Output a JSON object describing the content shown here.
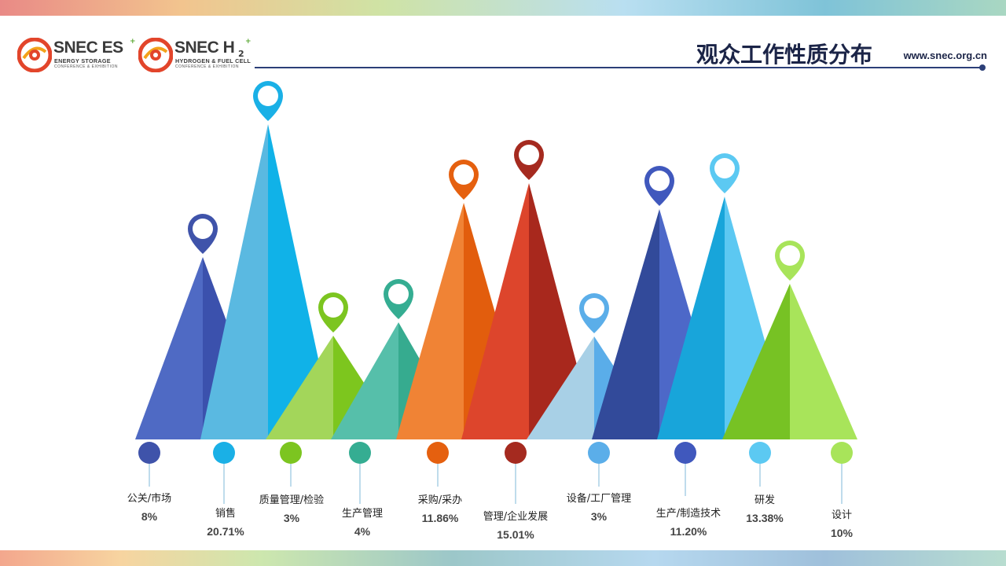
{
  "header": {
    "title": "观众工作性质分布",
    "website": "www.snec.org.cn"
  },
  "logos": {
    "es": {
      "name": "SNEC ES",
      "superscript": "+",
      "line1": "ENERGY STORAGE",
      "line2": "CONFERENCE & EXHIBITION"
    },
    "h2": {
      "name": "SNEC H",
      "subscript": "2",
      "superscript": "+",
      "line1": "HYDROGEN & FUEL CELL",
      "line2": "CONFERENCE & EXHIBITION"
    }
  },
  "chart_data": {
    "type": "bar",
    "categories": [
      "公关/市场",
      "销售",
      "质量管理/检验",
      "生产管理",
      "采购/采办",
      "管理/企业发展",
      "设备/工厂管理",
      "生产/制造技术",
      "研发",
      "设计"
    ],
    "value_labels": [
      "8%",
      "20.71%",
      "3%",
      "4%",
      "11.86%",
      "15.01%",
      "3%",
      "11.20%",
      "13.38%",
      "10%"
    ],
    "values": [
      8,
      20.71,
      3,
      4,
      11.86,
      15.01,
      3,
      11.2,
      13.38,
      10
    ],
    "colors": {
      "light": [
        "#4f6ac4",
        "#5ab9e1",
        "#a3d65a",
        "#56bfaa",
        "#f08335",
        "#dd452c",
        "#a8d0e6",
        "#324a9a",
        "#18a5da",
        "#77c224"
      ],
      "dark": [
        "#3b51ad",
        "#10b2e8",
        "#7dc61e",
        "#36ab8f",
        "#e25d0d",
        "#a8281d",
        "#5aade9",
        "#4d68c8",
        "#5cc8f2",
        "#a8e45a"
      ],
      "pin": [
        "#3f53aa",
        "#1ab0e6",
        "#7cc520",
        "#35ad92",
        "#e5600f",
        "#a52a1f",
        "#5baee9",
        "#4058bd",
        "#5cc9f2",
        "#a8e45a"
      ]
    },
    "title": "观众工作性质分布",
    "xlabel": "",
    "ylabel": ""
  }
}
